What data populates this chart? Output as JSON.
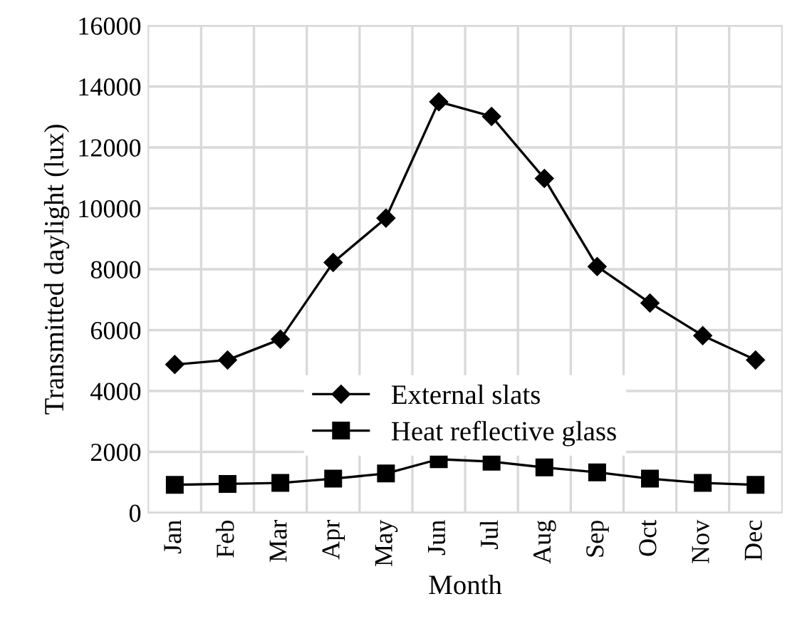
{
  "chart_data": {
    "type": "line",
    "xlabel": "Month",
    "ylabel": "Transmitted daylight (lux)",
    "categories": [
      "Jan",
      "Feb",
      "Mar",
      "Apr",
      "May",
      "Jun",
      "Jul",
      "Aug",
      "Sep",
      "Oct",
      "Nov",
      "Dec"
    ],
    "series": [
      {
        "name": "External slats",
        "color": "#000000",
        "marker": "diamond",
        "values": [
          4870,
          5020,
          5700,
          8220,
          9680,
          13500,
          13020,
          10980,
          8090,
          6890,
          5820,
          5020
        ]
      },
      {
        "name": "Heat reflective glass",
        "color": "#000000",
        "marker": "square",
        "values": [
          920,
          950,
          980,
          1120,
          1290,
          1760,
          1680,
          1490,
          1330,
          1120,
          980,
          920
        ]
      }
    ],
    "ylim": [
      0,
      16000
    ],
    "yticks": [
      0,
      2000,
      4000,
      6000,
      8000,
      10000,
      12000,
      14000,
      16000
    ],
    "grid": true,
    "legend": "center",
    "line_style": "solid"
  }
}
